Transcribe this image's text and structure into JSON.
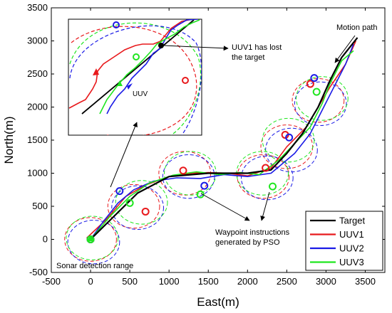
{
  "chart_data": {
    "type": "line",
    "xlabel": "East(m)",
    "ylabel": "North(m)",
    "xlim": [
      -500,
      3750
    ],
    "ylim": [
      -500,
      3500
    ],
    "xticks": [
      "-500",
      "0",
      "500",
      "1000",
      "1500",
      "2000",
      "2500",
      "3000",
      "3500"
    ],
    "yticks": [
      "-500",
      "0",
      "500",
      "1000",
      "1500",
      "2000",
      "2500",
      "3000",
      "3500"
    ],
    "legend_position": "bottom-right",
    "series": [
      {
        "name": "Target",
        "color": "#000000",
        "x": [
          0,
          600,
          1000,
          1500,
          2000,
          2300,
          2500,
          2700,
          2900,
          3050,
          3200,
          3400
        ],
        "y": [
          0,
          700,
          950,
          1000,
          1000,
          1050,
          1300,
          1600,
          2000,
          2400,
          2750,
          3050
        ]
      },
      {
        "name": "UUV1",
        "color": "#e8191c",
        "x": [
          -50,
          200,
          450,
          700,
          1000,
          1300,
          1500,
          1750,
          2000,
          2300,
          2500,
          2750,
          2900,
          3050,
          3250,
          3380
        ],
        "y": [
          20,
          300,
          650,
          820,
          950,
          1000,
          1010,
          1000,
          960,
          1080,
          1400,
          1700,
          2000,
          2300,
          2650,
          3000
        ]
      },
      {
        "name": "UUV2",
        "color": "#1a1ae6",
        "x": [
          0,
          150,
          350,
          550,
          800,
          1100,
          1400,
          1700,
          2000,
          2300,
          2600,
          2800,
          2950,
          3100,
          3250,
          3350
        ],
        "y": [
          0,
          250,
          550,
          750,
          880,
          930,
          920,
          980,
          950,
          1000,
          1300,
          1600,
          1950,
          2300,
          2650,
          2950
        ]
      },
      {
        "name": "UUV3",
        "color": "#1fe61f",
        "x": [
          0,
          250,
          500,
          750,
          1050,
          1350,
          1650,
          1900,
          2150,
          2400,
          2600,
          2800,
          2950,
          3050,
          3200,
          3350
        ],
        "y": [
          0,
          350,
          650,
          850,
          970,
          1020,
          980,
          1010,
          980,
          1200,
          1450,
          1700,
          2050,
          2350,
          2700,
          2850
        ]
      }
    ],
    "waypoints": [
      {
        "series": "UUV1",
        "color": "#e8191c",
        "points": [
          [
            0,
            0
          ],
          [
            700,
            420
          ],
          [
            1180,
            1040
          ],
          [
            2230,
            1080
          ],
          [
            2480,
            1580
          ],
          [
            2800,
            2350
          ]
        ]
      },
      {
        "series": "UUV2",
        "color": "#1a1ae6",
        "points": [
          [
            0,
            0
          ],
          [
            370,
            730
          ],
          [
            1450,
            810
          ],
          [
            2530,
            1540
          ],
          [
            2850,
            2440
          ]
        ]
      },
      {
        "series": "UUV3",
        "color": "#1fe61f",
        "points": [
          [
            0,
            0
          ],
          [
            500,
            550
          ],
          [
            1400,
            680
          ],
          [
            2320,
            800
          ],
          [
            2880,
            2230
          ]
        ]
      }
    ],
    "detection_circles": [
      {
        "series": "UUV1",
        "color": "#e8191c",
        "centers": [
          [
            0,
            0
          ],
          [
            550,
            500
          ],
          [
            1200,
            1000
          ],
          [
            2200,
            950
          ],
          [
            2500,
            1400
          ],
          [
            2900,
            2100
          ]
        ]
      },
      {
        "series": "UUV2",
        "color": "#1a1ae6",
        "centers": [
          [
            40,
            -40
          ],
          [
            600,
            480
          ],
          [
            1250,
            950
          ],
          [
            2250,
            930
          ],
          [
            2560,
            1350
          ],
          [
            2930,
            2050
          ]
        ]
      },
      {
        "series": "UUV3",
        "color": "#1fe61f",
        "centers": [
          [
            20,
            20
          ],
          [
            650,
            560
          ],
          [
            1270,
            1000
          ],
          [
            2190,
            1000
          ],
          [
            2520,
            1500
          ],
          [
            2950,
            2130
          ]
        ]
      }
    ],
    "annotations": {
      "uuv1_lost": "UUV1 has lost\nthe target",
      "motion_path": "Motion path",
      "uuv": "UUV",
      "waypoints": "Waypoint instructions\ngenerated by PSO",
      "sonar": "Sonar detection range"
    }
  }
}
